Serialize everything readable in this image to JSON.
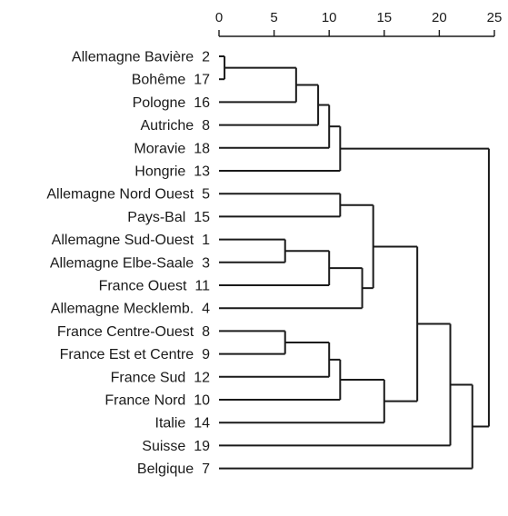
{
  "chart_data": {
    "type": "dendrogram",
    "axis": {
      "range": [
        0,
        25
      ],
      "ticks": [
        {
          "value": 0,
          "label": "0"
        },
        {
          "value": 5,
          "label": "5"
        },
        {
          "value": 10,
          "label": "10"
        },
        {
          "value": 15,
          "label": "15"
        },
        {
          "value": 20,
          "label": "20"
        },
        {
          "value": 25,
          "label": "25"
        }
      ]
    },
    "leaves": [
      {
        "name": "Allemagne Bavière",
        "number": "2"
      },
      {
        "name": "Bohême",
        "number": "17"
      },
      {
        "name": "Pologne",
        "number": "16"
      },
      {
        "name": "Autriche",
        "number": "8"
      },
      {
        "name": "Moravie",
        "number": "18"
      },
      {
        "name": "Hongrie",
        "number": "13"
      },
      {
        "name": "Allemagne Nord Ouest",
        "number": "5"
      },
      {
        "name": "Pays-Bal",
        "number": "15"
      },
      {
        "name": "Allemagne Sud-Ouest",
        "number": "1"
      },
      {
        "name": "Allemagne Elbe-Saale",
        "number": "3"
      },
      {
        "name": "France Ouest",
        "number": "11"
      },
      {
        "name": "Allemagne Mecklemb.",
        "number": "4"
      },
      {
        "name": "France Centre-Ouest",
        "number": "8"
      },
      {
        "name": "France Est et Centre",
        "number": "9"
      },
      {
        "name": "France Sud",
        "number": "12"
      },
      {
        "name": "France Nord",
        "number": "10"
      },
      {
        "name": "Italie",
        "number": "14"
      },
      {
        "name": "Suisse",
        "number": "19"
      },
      {
        "name": "Belgique",
        "number": "7"
      }
    ],
    "merges": [
      {
        "id": "m1",
        "children": [
          "L0",
          "L1"
        ],
        "distance": 0.5
      },
      {
        "id": "m2",
        "children": [
          "m1",
          "L2"
        ],
        "distance": 7
      },
      {
        "id": "m3",
        "children": [
          "m2",
          "L3"
        ],
        "distance": 9
      },
      {
        "id": "m4",
        "children": [
          "m3",
          "L4"
        ],
        "distance": 10
      },
      {
        "id": "m5",
        "children": [
          "m4",
          "L5"
        ],
        "distance": 11
      },
      {
        "id": "m6",
        "children": [
          "L6",
          "L7"
        ],
        "distance": 11
      },
      {
        "id": "m7",
        "children": [
          "L8",
          "L9"
        ],
        "distance": 6
      },
      {
        "id": "m8",
        "children": [
          "m7",
          "L10"
        ],
        "distance": 10
      },
      {
        "id": "m9",
        "children": [
          "m8",
          "L11"
        ],
        "distance": 13
      },
      {
        "id": "m10",
        "children": [
          "m6",
          "m9"
        ],
        "distance": 14
      },
      {
        "id": "m11",
        "children": [
          "L12",
          "L13"
        ],
        "distance": 6
      },
      {
        "id": "m12",
        "children": [
          "m11",
          "L14"
        ],
        "distance": 10
      },
      {
        "id": "m13",
        "children": [
          "m12",
          "L15"
        ],
        "distance": 11
      },
      {
        "id": "m14",
        "children": [
          "m13",
          "L16"
        ],
        "distance": 15
      },
      {
        "id": "m15",
        "children": [
          "m10",
          "m14"
        ],
        "distance": 18
      },
      {
        "id": "m16",
        "children": [
          "m15",
          "L17"
        ],
        "distance": 21
      },
      {
        "id": "m17",
        "children": [
          "m16",
          "L18"
        ],
        "distance": 23
      },
      {
        "id": "m18",
        "children": [
          "m5",
          "m17"
        ],
        "distance": 24.5
      }
    ]
  }
}
